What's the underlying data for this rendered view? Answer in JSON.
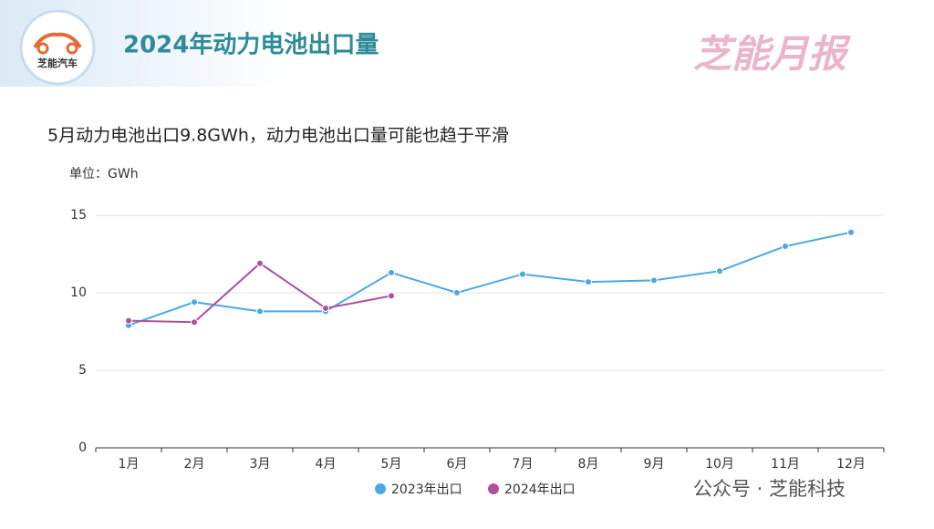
{
  "chart_data": {
    "type": "line",
    "logo_text": "芝能汽车",
    "title": "2024年动力电池出口量",
    "brand": "芝能月报",
    "subtitle": "5月动力电池出口9.8GWh，动力电池出口量可能也趋于平滑",
    "y_label": "单位：GWh",
    "watermark": "公众号 · 芝能科技",
    "categories": [
      "1月",
      "2月",
      "3月",
      "4月",
      "5月",
      "6月",
      "7月",
      "8月",
      "9月",
      "10月",
      "11月",
      "12月"
    ],
    "series": [
      {
        "name": "2023年出口",
        "color": "#4aa8e6",
        "values": [
          7.9,
          9.4,
          8.8,
          8.8,
          11.3,
          10.0,
          11.2,
          10.7,
          10.8,
          11.4,
          13.0,
          13.9
        ]
      },
      {
        "name": "2024年出口",
        "color": "#b04f9c",
        "values": [
          8.2,
          8.1,
          11.9,
          9.0,
          9.8,
          null,
          null,
          null,
          null,
          null,
          null,
          null
        ]
      }
    ],
    "ylim": [
      0,
      15
    ],
    "yticks": [
      0,
      5,
      10,
      15
    ],
    "grid": true
  }
}
